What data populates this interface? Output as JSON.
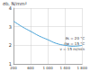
{
  "chart_data": {
    "type": "line",
    "ylabel": "σb, N/mm²",
    "annotations": [
      "ϑs = 20 °C",
      "ϑw = 15 °C",
      "v = 15 m/min"
    ],
    "x": [
      200,
      400,
      600,
      800,
      1000,
      1200,
      1400,
      1600,
      1800
    ],
    "values": [
      3.3,
      3.0,
      2.75,
      2.5,
      2.3,
      2.1,
      2.0,
      1.95,
      2.0
    ],
    "color": "#4aa3d8",
    "xlim": [
      200,
      1800
    ],
    "xticks": [
      200,
      600,
      {
        "value": 1000,
        "label": "1 000"
      },
      {
        "value": 1400,
        "label": "1 400"
      },
      {
        "value": 1800,
        "label": "1 800"
      }
    ],
    "ylim": [
      1,
      4
    ],
    "yticks": [
      1,
      2,
      3,
      4
    ],
    "grid": true
  }
}
